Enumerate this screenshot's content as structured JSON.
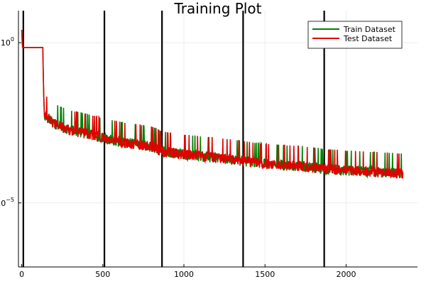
{
  "chart_data": {
    "type": "line",
    "title": "Training Plot",
    "xlabel": "",
    "ylabel": "",
    "xlim": [
      -20,
      2440
    ],
    "ylim_log10": [
      -7,
      1
    ],
    "y_scale": "log",
    "grid": true,
    "legend_position": "top-right",
    "x_ticks": [
      0,
      500,
      1000,
      1500,
      2000
    ],
    "y_ticks": [
      {
        "exp": 0,
        "label": "10",
        "sup": "0"
      },
      {
        "exp": -5,
        "label": "10",
        "sup": "−5"
      }
    ],
    "vlines": [
      10,
      510,
      865,
      1365,
      1865
    ],
    "series": [
      {
        "name": "Train Dataset",
        "color": "#008000",
        "log10_points": [
          [
            0,
            0.4
          ],
          [
            5,
            -0.15
          ],
          [
            130,
            -0.15
          ],
          [
            135,
            -1.5
          ],
          [
            140,
            -2.3
          ],
          [
            200,
            -2.6
          ],
          [
            300,
            -2.8
          ],
          [
            400,
            -2.9
          ],
          [
            500,
            -3.05
          ],
          [
            600,
            -3.15
          ],
          [
            800,
            -3.3
          ],
          [
            865,
            -3.45
          ],
          [
            1000,
            -3.55
          ],
          [
            1200,
            -3.65
          ],
          [
            1365,
            -3.75
          ],
          [
            1500,
            -3.85
          ],
          [
            1700,
            -3.9
          ],
          [
            1865,
            -4.0
          ],
          [
            2000,
            -4.05
          ],
          [
            2200,
            -4.1
          ],
          [
            2350,
            -4.15
          ]
        ]
      },
      {
        "name": "Test Dataset",
        "color": "#e00000",
        "log10_points": [
          [
            0,
            0.4
          ],
          [
            5,
            -0.15
          ],
          [
            130,
            -0.15
          ],
          [
            135,
            -1.5
          ],
          [
            140,
            -2.3
          ],
          [
            200,
            -2.6
          ],
          [
            300,
            -2.8
          ],
          [
            400,
            -2.9
          ],
          [
            500,
            -3.05
          ],
          [
            600,
            -3.15
          ],
          [
            800,
            -3.3
          ],
          [
            865,
            -3.45
          ],
          [
            1000,
            -3.55
          ],
          [
            1200,
            -3.65
          ],
          [
            1365,
            -3.75
          ],
          [
            1500,
            -3.85
          ],
          [
            1700,
            -3.9
          ],
          [
            1865,
            -4.0
          ],
          [
            2000,
            -4.05
          ],
          [
            2200,
            -4.1
          ],
          [
            2350,
            -4.15
          ]
        ]
      }
    ]
  },
  "colors": {
    "frame": "#000000",
    "grid": "#eeeeee"
  }
}
